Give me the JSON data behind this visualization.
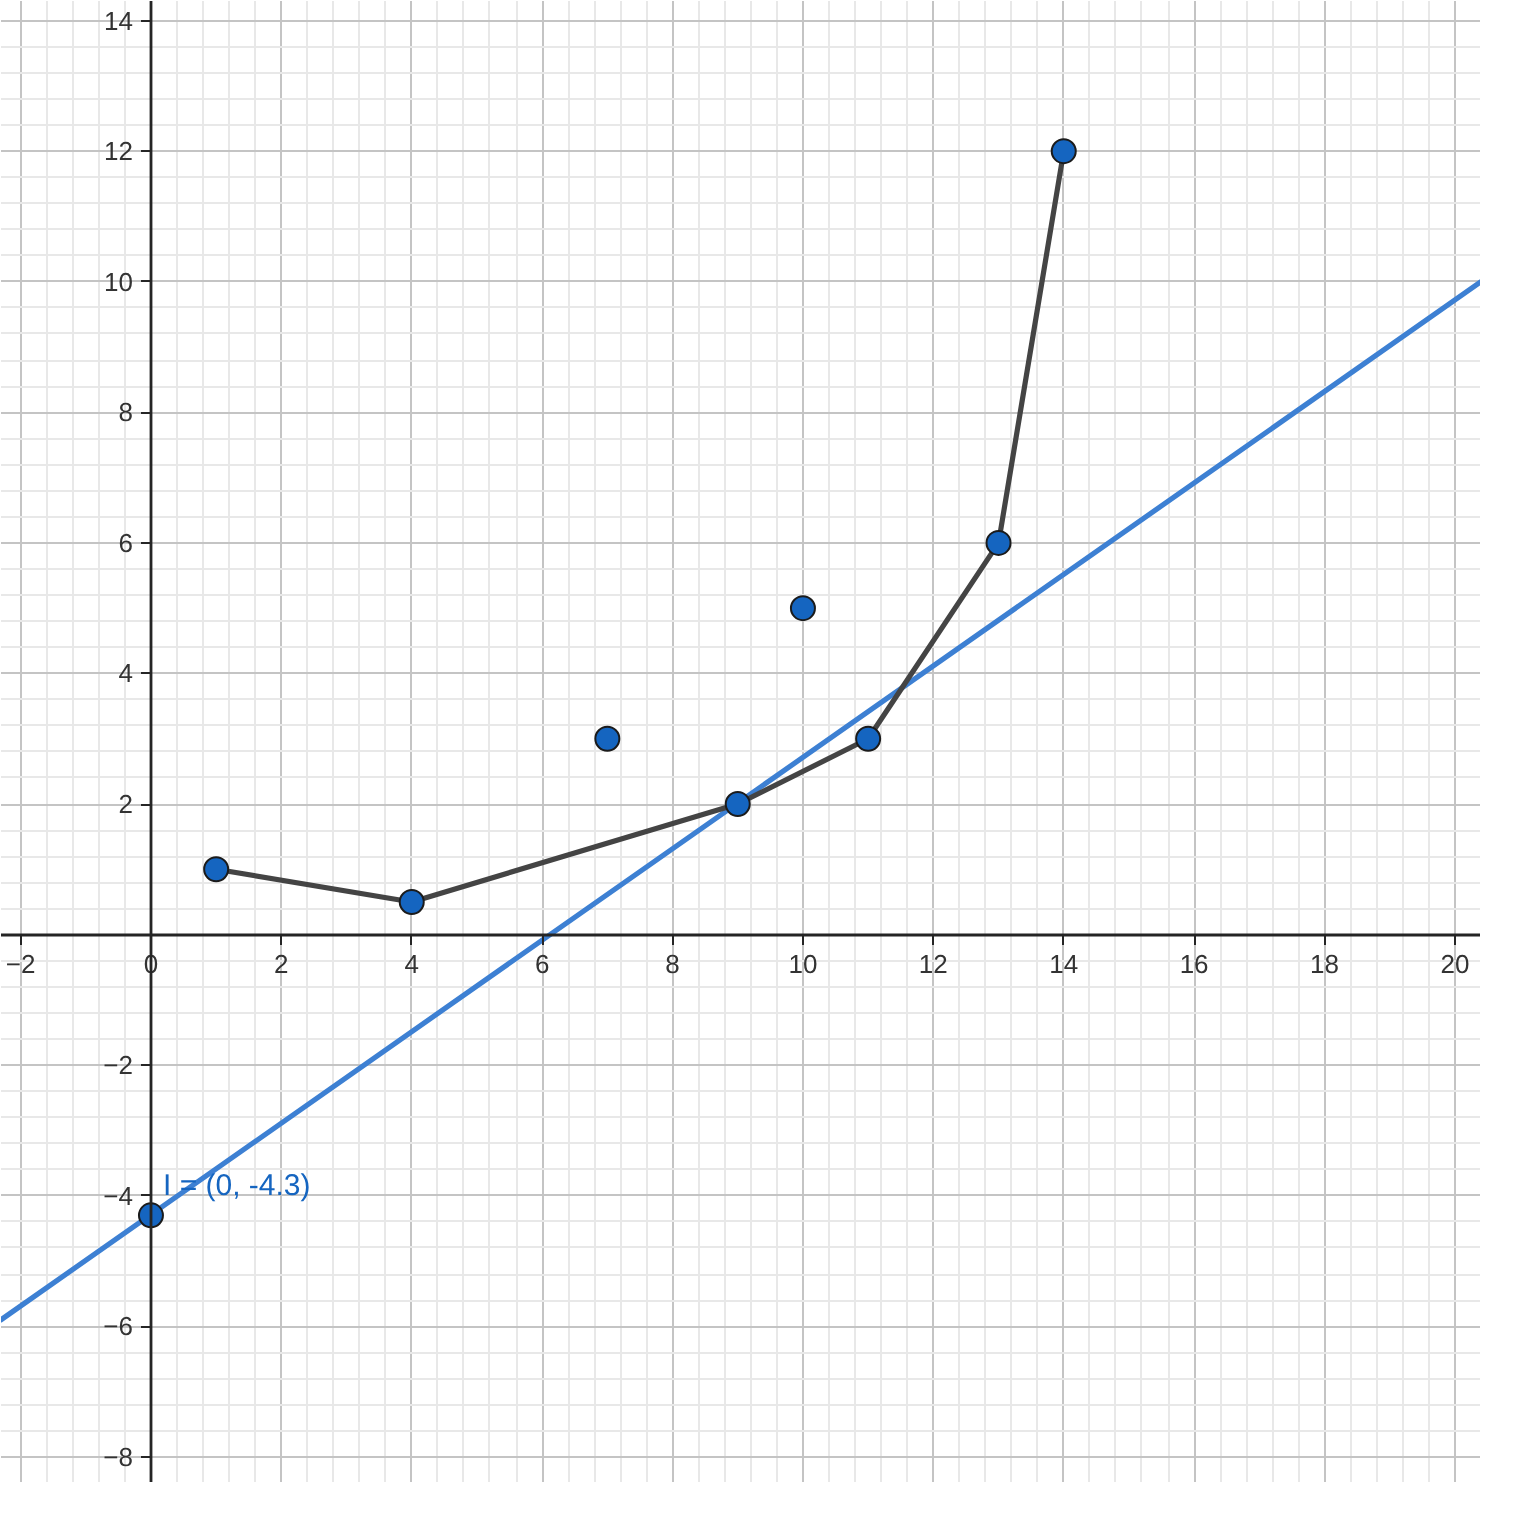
{
  "chart_data": {
    "type": "scatter",
    "xlim": [
      -2.3,
      20.4
    ],
    "ylim": [
      -8.4,
      14.3
    ],
    "xticks": [
      {
        "value": -2,
        "label": "−2"
      },
      0,
      2,
      4,
      6,
      8,
      10,
      12,
      14,
      16,
      18,
      20
    ],
    "yticks": [
      {
        "value": -8,
        "label": "−8"
      },
      {
        "value": -6,
        "label": "−6"
      },
      {
        "value": -4,
        "label": "−4"
      },
      {
        "value": -2,
        "label": "−2"
      },
      2,
      4,
      6,
      8,
      10,
      12,
      14
    ],
    "grid": true,
    "series": [
      {
        "type": "line",
        "color": "#3d80d3",
        "x": [
          -2.3,
          20.4
        ],
        "values": [
          -5.9,
          10
        ],
        "marker": "none",
        "line_style": "solid"
      },
      {
        "type": "line",
        "color": "#444444",
        "x": [
          1,
          4,
          9,
          11,
          13,
          14
        ],
        "values": [
          1,
          0.5,
          2,
          3,
          6,
          12
        ],
        "marker": "none",
        "line_style": "solid"
      },
      {
        "color": "#1565c0",
        "x": [
          1,
          4,
          7,
          9,
          10,
          11,
          13,
          14,
          0
        ],
        "values": [
          1,
          0.5,
          3,
          2,
          5,
          3,
          6,
          12,
          -4.3
        ],
        "marker": "circle"
      }
    ],
    "annotations": [
      {
        "text": "I = (0, -4.3)",
        "x": 0,
        "y": -4.3
      }
    ]
  }
}
